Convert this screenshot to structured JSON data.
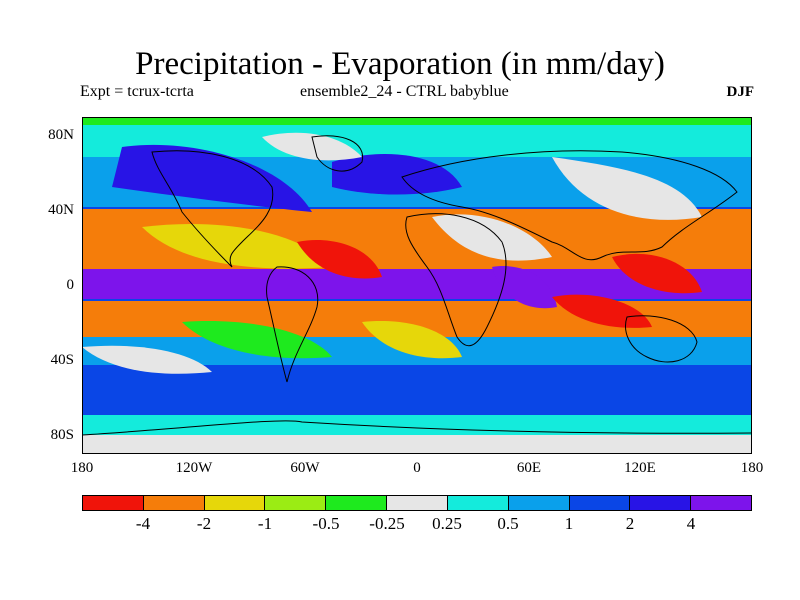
{
  "chart_data": {
    "type": "heatmap",
    "title": "Precipitation - Evaporation (in mm/day)",
    "subtitle_left": "Expt = tcrux-tcrta",
    "subtitle_center": "ensemble2_24 - CTRL babyblue",
    "subtitle_right": "DJF",
    "x_ticks": [
      "180",
      "120W",
      "60W",
      "0",
      "60E",
      "120E",
      "180"
    ],
    "y_ticks": [
      "80N",
      "40N",
      "0",
      "40S",
      "80S"
    ],
    "x_range": [
      -180,
      180
    ],
    "y_range": [
      -90,
      90
    ],
    "colorbar_labels": [
      "-4",
      "-2",
      "-1",
      "-0.5",
      "-0.25",
      "0.25",
      "0.5",
      "1",
      "2",
      "4"
    ],
    "colorbar_colors": [
      "#f0140a",
      "#f57d0a",
      "#e6d70a",
      "#9bec14",
      "#1eea1e",
      "#e6e6e6",
      "#14ebdc",
      "#0aa0eb",
      "#0a46e6",
      "#2814e6",
      "#7d14eb"
    ]
  }
}
